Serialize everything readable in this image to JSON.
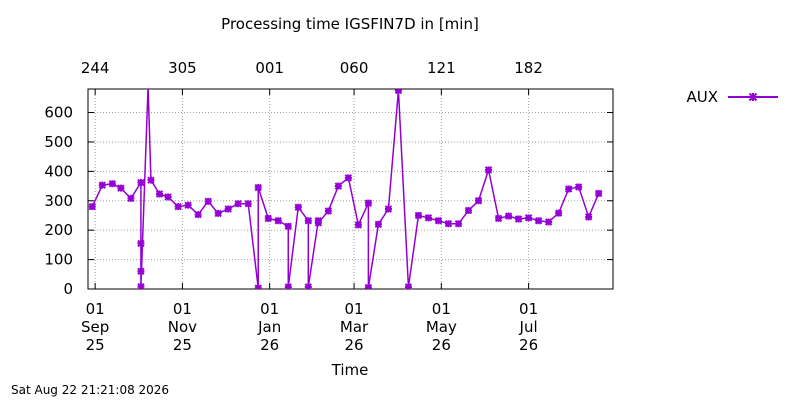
{
  "chart_data": {
    "type": "line",
    "title": "Processing time IGSFIN7D in [min]",
    "xlabel": "Time",
    "ylabel": "",
    "ylim": [
      0,
      680
    ],
    "y_ticks": [
      0,
      100,
      200,
      300,
      400,
      500,
      600
    ],
    "x_ticks_bottom": [
      {
        "day": "01",
        "month": "Sep",
        "year": "25",
        "date": "2025-09-01"
      },
      {
        "day": "01",
        "month": "Nov",
        "year": "25",
        "date": "2025-11-01"
      },
      {
        "day": "01",
        "month": "Jan",
        "year": "26",
        "date": "2026-01-01"
      },
      {
        "day": "01",
        "month": "Mar",
        "year": "26",
        "date": "2026-03-01"
      },
      {
        "day": "01",
        "month": "May",
        "year": "26",
        "date": "2026-05-01"
      },
      {
        "day": "01",
        "month": "Jul",
        "year": "26",
        "date": "2026-07-01"
      }
    ],
    "x_ticks_top": [
      {
        "label": "244",
        "date": "2025-09-01"
      },
      {
        "label": "305",
        "date": "2025-11-01"
      },
      {
        "label": "001",
        "date": "2026-01-01"
      },
      {
        "label": "060",
        "date": "2026-03-01"
      },
      {
        "label": "121",
        "date": "2026-05-01"
      },
      {
        "label": "182",
        "date": "2026-07-01"
      }
    ],
    "xlim": [
      "2025-08-27",
      "2026-08-29"
    ],
    "grid": true,
    "legend_position": "outside-right",
    "series": [
      {
        "name": "AUX",
        "color": "#9400d3",
        "points": [
          [
            "2025-08-30",
            280
          ],
          [
            "2025-09-06",
            353
          ],
          [
            "2025-09-13",
            358
          ],
          [
            "2025-09-19",
            343
          ],
          [
            "2025-09-26",
            308
          ],
          [
            "2025-10-03",
            362
          ],
          [
            "2025-10-03",
            155
          ],
          [
            "2025-10-03",
            60
          ],
          [
            "2025-10-03",
            8
          ],
          [
            "2025-10-08",
            690
          ],
          [
            "2025-10-10",
            370
          ],
          [
            "2025-10-16",
            323
          ],
          [
            "2025-10-22",
            313
          ],
          [
            "2025-10-29",
            280
          ],
          [
            "2025-11-05",
            285
          ],
          [
            "2025-11-12",
            253
          ],
          [
            "2025-11-19",
            298
          ],
          [
            "2025-11-26",
            257
          ],
          [
            "2025-12-03",
            272
          ],
          [
            "2025-12-10",
            290
          ],
          [
            "2025-12-17",
            290
          ],
          [
            "2025-12-24",
            3
          ],
          [
            "2025-12-24",
            345
          ],
          [
            "2025-12-31",
            240
          ],
          [
            "2026-01-07",
            232
          ],
          [
            "2026-01-14",
            213
          ],
          [
            "2026-01-14",
            7
          ],
          [
            "2026-01-21",
            278
          ],
          [
            "2026-01-28",
            232
          ],
          [
            "2026-01-28",
            7
          ],
          [
            "2026-02-04",
            232
          ],
          [
            "2026-02-04",
            225
          ],
          [
            "2026-02-11",
            265
          ],
          [
            "2026-02-18",
            350
          ],
          [
            "2026-02-25",
            378
          ],
          [
            "2026-03-04",
            218
          ],
          [
            "2026-03-11",
            292
          ],
          [
            "2026-03-11",
            5
          ],
          [
            "2026-03-18",
            220
          ],
          [
            "2026-03-25",
            272
          ],
          [
            "2026-04-01",
            675
          ],
          [
            "2026-04-08",
            7
          ],
          [
            "2026-04-15",
            250
          ],
          [
            "2026-04-22",
            242
          ],
          [
            "2026-04-29",
            232
          ],
          [
            "2026-05-06",
            222
          ],
          [
            "2026-05-13",
            222
          ],
          [
            "2026-05-20",
            267
          ],
          [
            "2026-05-27",
            300
          ],
          [
            "2026-06-03",
            405
          ],
          [
            "2026-06-10",
            240
          ],
          [
            "2026-06-17",
            248
          ],
          [
            "2026-06-24",
            238
          ],
          [
            "2026-07-01",
            242
          ],
          [
            "2026-07-08",
            232
          ],
          [
            "2026-07-15",
            228
          ],
          [
            "2026-07-22",
            258
          ],
          [
            "2026-07-29",
            340
          ],
          [
            "2026-08-05",
            347
          ],
          [
            "2026-08-12",
            245
          ],
          [
            "2026-08-19",
            325
          ]
        ]
      }
    ]
  },
  "footer": {
    "timestamp": "Sat Aug 22 21:21:08 2026"
  }
}
